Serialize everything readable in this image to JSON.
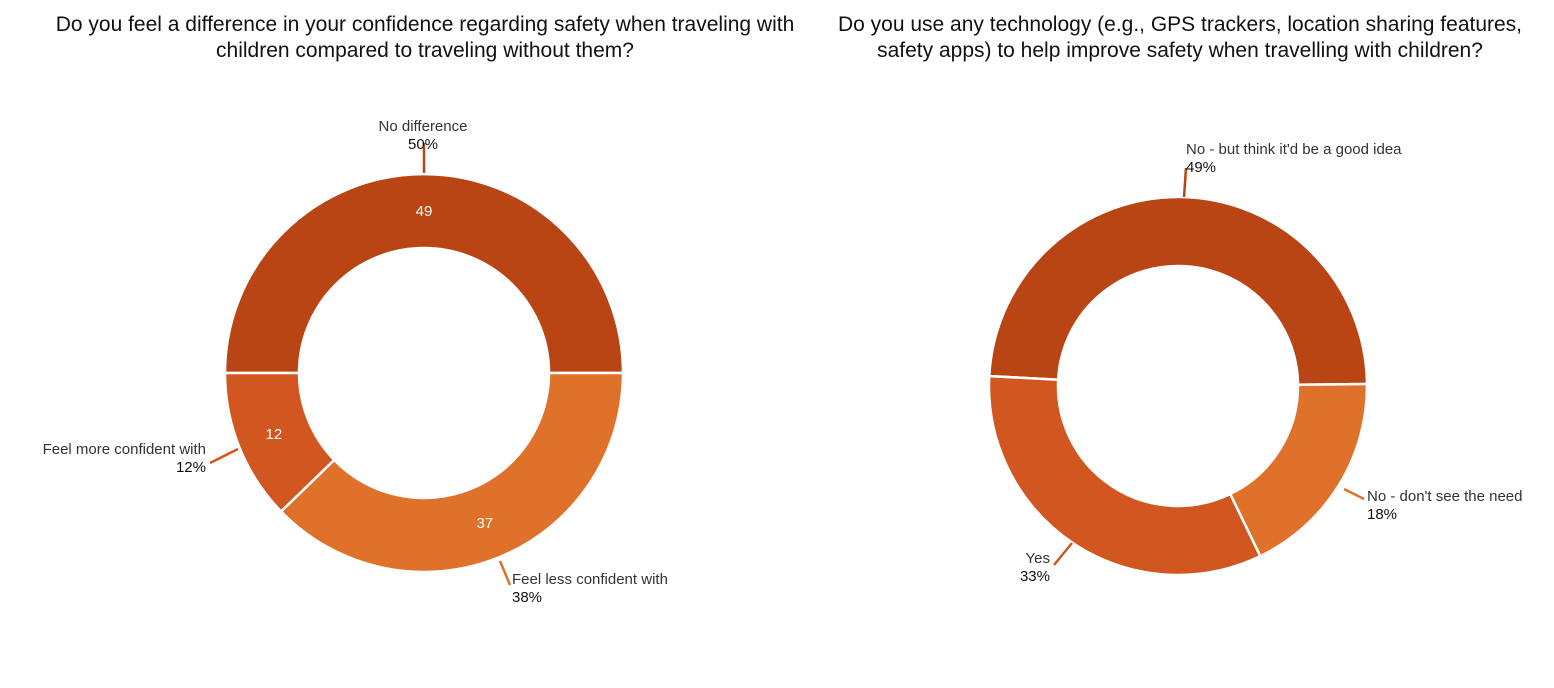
{
  "chart_data": [
    {
      "type": "pie",
      "donut": true,
      "title": "Do you feel a difference in your confidence regarding safety when traveling with children compared to traveling without them?",
      "categories": [
        "No difference",
        "Feel less confident with",
        "Feel more confident with"
      ],
      "values": [
        49,
        37,
        12
      ],
      "percent_labels": [
        "50%",
        "38%",
        "12%"
      ],
      "value_labels": [
        "49",
        "37",
        "12"
      ],
      "colors": [
        "#B94514",
        "#E0712B",
        "#D2561F"
      ]
    },
    {
      "type": "pie",
      "donut": true,
      "title": "Do you use any technology (e.g., GPS trackers, location sharing features, safety apps) to help improve safety when travelling with children?",
      "categories": [
        "No - but think it'd be a good idea",
        "No - don't see the need",
        "Yes"
      ],
      "values": [
        49,
        18,
        33
      ],
      "percent_labels": [
        "49%",
        "18%",
        "33%"
      ],
      "colors": [
        "#B94514",
        "#E0712B",
        "#D2561F"
      ]
    }
  ]
}
